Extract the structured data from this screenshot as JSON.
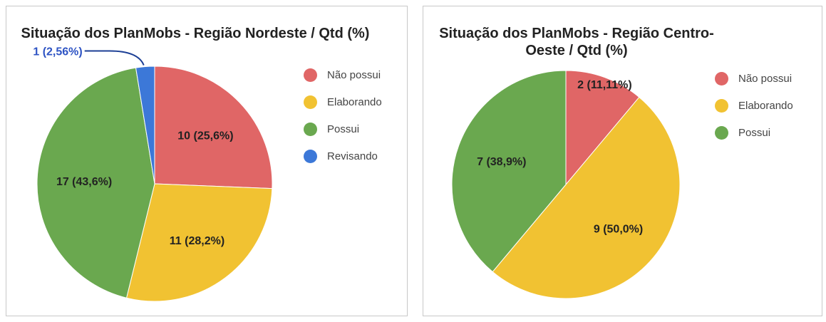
{
  "chart_data": [
    {
      "type": "pie",
      "title": "Situação dos PlanMobs - Região Nordeste / Qtd (%)",
      "legend_position": "right",
      "categories": [
        "Não possui",
        "Elaborando",
        "Possui",
        "Revisando"
      ],
      "values": [
        10,
        11,
        17,
        1
      ],
      "labels": [
        "10 (25,6%)",
        "11 (28,2%)",
        "17 (43,6%)",
        "1 (2,56%)"
      ],
      "colors": [
        "#e06666",
        "#f1c232",
        "#6aa84f",
        "#3c78d8"
      ]
    },
    {
      "type": "pie",
      "title": "Situação dos PlanMobs - Região Centro-Oeste / Qtd (%)",
      "legend_position": "right",
      "categories": [
        "Não possui",
        "Elaborando",
        "Possui"
      ],
      "values": [
        2,
        9,
        7
      ],
      "labels": [
        "2 (11,11%)",
        "9 (50,0%)",
        "7 (38,9%)"
      ],
      "colors": [
        "#e06666",
        "#f1c232",
        "#6aa84f"
      ]
    }
  ]
}
